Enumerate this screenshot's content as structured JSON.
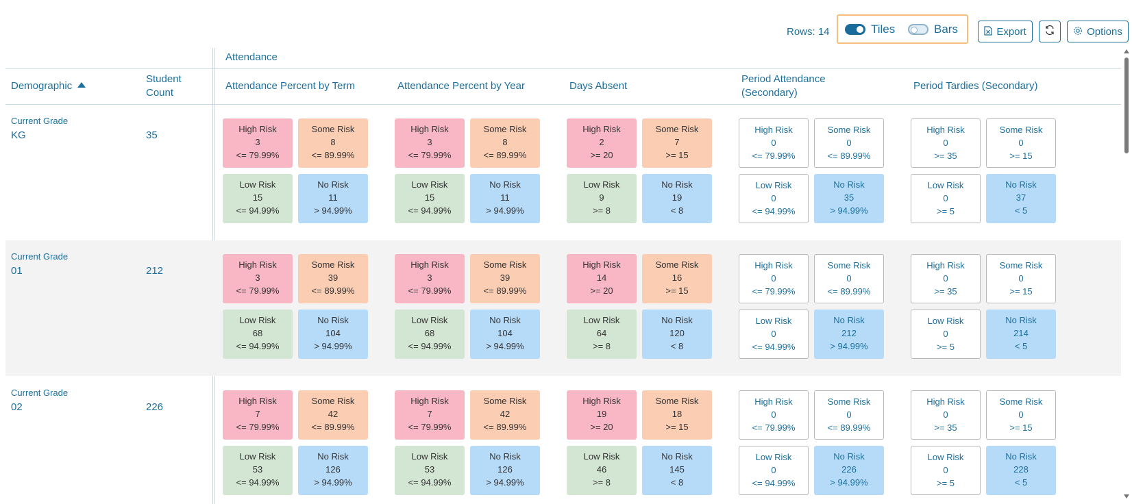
{
  "toolbar": {
    "rows_label": "Rows: 14",
    "tiles_label": "Tiles",
    "bars_label": "Bars",
    "export_label": "Export",
    "options_label": "Options"
  },
  "table": {
    "group_header": "Attendance",
    "columns": {
      "demographic": "Demographic",
      "student_count_line1": "Student",
      "student_count_line2": "Count",
      "att_term": "Attendance Percent by Term",
      "att_year": "Attendance Percent by Year",
      "days_absent": "Days Absent",
      "period_att_line1": "Period Attendance",
      "period_att_line2": "(Secondary)",
      "period_tardies": "Period Tardies (Secondary)"
    },
    "rows": [
      {
        "group_label": "Current Grade",
        "group_value": "KG",
        "count": "35",
        "att_term": [
          [
            "High Risk",
            "3",
            "<= 79.99%"
          ],
          [
            "Some Risk",
            "8",
            "<= 89.99%"
          ],
          [
            "Low Risk",
            "15",
            "<= 94.99%"
          ],
          [
            "No Risk",
            "11",
            "> 94.99%"
          ]
        ],
        "att_year": [
          [
            "High Risk",
            "3",
            "<= 79.99%"
          ],
          [
            "Some Risk",
            "8",
            "<= 89.99%"
          ],
          [
            "Low Risk",
            "15",
            "<= 94.99%"
          ],
          [
            "No Risk",
            "11",
            "> 94.99%"
          ]
        ],
        "days_absent": [
          [
            "High Risk",
            "2",
            ">= 20"
          ],
          [
            "Some Risk",
            "7",
            ">= 15"
          ],
          [
            "Low Risk",
            "9",
            ">= 8"
          ],
          [
            "No Risk",
            "19",
            "< 8"
          ]
        ],
        "period_att": [
          [
            "High Risk",
            "0",
            "<= 79.99%"
          ],
          [
            "Some Risk",
            "0",
            "<= 89.99%"
          ],
          [
            "Low Risk",
            "0",
            "<= 94.99%"
          ],
          [
            "No Risk",
            "35",
            "> 94.99%"
          ]
        ],
        "period_tardies": [
          [
            "High Risk",
            "0",
            ">= 35"
          ],
          [
            "Some Risk",
            "0",
            ">= 15"
          ],
          [
            "Low Risk",
            "0",
            ">= 5"
          ],
          [
            "No Risk",
            "37",
            "< 5"
          ]
        ]
      },
      {
        "group_label": "Current Grade",
        "group_value": "01",
        "count": "212",
        "att_term": [
          [
            "High Risk",
            "3",
            "<= 79.99%"
          ],
          [
            "Some Risk",
            "39",
            "<= 89.99%"
          ],
          [
            "Low Risk",
            "68",
            "<= 94.99%"
          ],
          [
            "No Risk",
            "104",
            "> 94.99%"
          ]
        ],
        "att_year": [
          [
            "High Risk",
            "3",
            "<= 79.99%"
          ],
          [
            "Some Risk",
            "39",
            "<= 89.99%"
          ],
          [
            "Low Risk",
            "68",
            "<= 94.99%"
          ],
          [
            "No Risk",
            "104",
            "> 94.99%"
          ]
        ],
        "days_absent": [
          [
            "High Risk",
            "14",
            ">= 20"
          ],
          [
            "Some Risk",
            "16",
            ">= 15"
          ],
          [
            "Low Risk",
            "64",
            ">= 8"
          ],
          [
            "No Risk",
            "120",
            "< 8"
          ]
        ],
        "period_att": [
          [
            "High Risk",
            "0",
            "<= 79.99%"
          ],
          [
            "Some Risk",
            "0",
            "<= 89.99%"
          ],
          [
            "Low Risk",
            "0",
            "<= 94.99%"
          ],
          [
            "No Risk",
            "212",
            "> 94.99%"
          ]
        ],
        "period_tardies": [
          [
            "High Risk",
            "0",
            ">= 35"
          ],
          [
            "Some Risk",
            "0",
            ">= 15"
          ],
          [
            "Low Risk",
            "0",
            ">= 5"
          ],
          [
            "No Risk",
            "214",
            "< 5"
          ]
        ]
      },
      {
        "group_label": "Current Grade",
        "group_value": "02",
        "count": "226",
        "att_term": [
          [
            "High Risk",
            "7",
            "<= 79.99%"
          ],
          [
            "Some Risk",
            "42",
            "<= 89.99%"
          ],
          [
            "Low Risk",
            "53",
            "<= 94.99%"
          ],
          [
            "No Risk",
            "126",
            "> 94.99%"
          ]
        ],
        "att_year": [
          [
            "High Risk",
            "7",
            "<= 79.99%"
          ],
          [
            "Some Risk",
            "42",
            "<= 89.99%"
          ],
          [
            "Low Risk",
            "53",
            "<= 94.99%"
          ],
          [
            "No Risk",
            "126",
            "> 94.99%"
          ]
        ],
        "days_absent": [
          [
            "High Risk",
            "19",
            ">= 20"
          ],
          [
            "Some Risk",
            "18",
            ">= 15"
          ],
          [
            "Low Risk",
            "46",
            ">= 8"
          ],
          [
            "No Risk",
            "145",
            "< 8"
          ]
        ],
        "period_att": [
          [
            "High Risk",
            "0",
            "<= 79.99%"
          ],
          [
            "Some Risk",
            "0",
            "<= 89.99%"
          ],
          [
            "Low Risk",
            "0",
            "<= 94.99%"
          ],
          [
            "No Risk",
            "226",
            "> 94.99%"
          ]
        ],
        "period_tardies": [
          [
            "High Risk",
            "0",
            ">= 35"
          ],
          [
            "Some Risk",
            "0",
            ">= 15"
          ],
          [
            "Low Risk",
            "0",
            ">= 5"
          ],
          [
            "No Risk",
            "228",
            "< 5"
          ]
        ]
      }
    ]
  },
  "colors": {
    "accent": "#1d6f9c",
    "high_risk": "#f9b7c6",
    "some_risk": "#fbcdb3",
    "low_risk": "#d3e6d3",
    "no_risk": "#b6dbf9",
    "toggle_group_border": "#f6bf7e"
  },
  "icons": {
    "export": "file-excel-icon",
    "refresh": "refresh-icon",
    "options": "gear-icon",
    "sort": "sort-ascending-icon"
  }
}
